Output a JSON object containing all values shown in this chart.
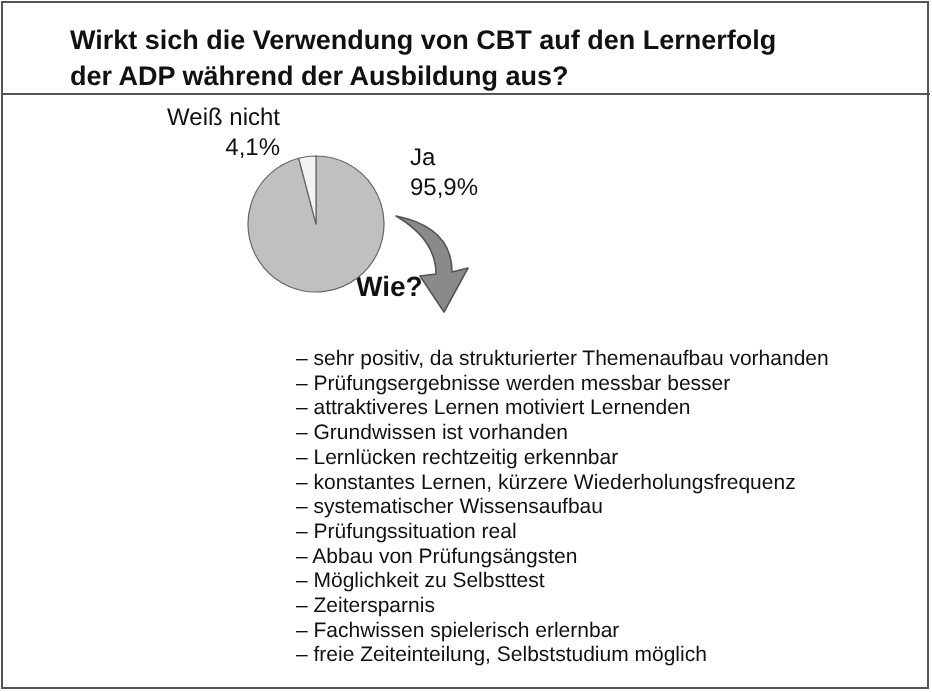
{
  "chart_data": {
    "type": "pie",
    "title": "Wirkt sich die Verwendung von CBT auf den Lernerfolg\nder ADP während der Ausbildung aus?",
    "categories": [
      "Ja",
      "Weiß nicht"
    ],
    "values": [
      95.9,
      4.1
    ],
    "colors": [
      "#c0c0c0",
      "#f2f2f2"
    ],
    "value_labels": [
      "95,9%",
      "4,1%"
    ],
    "legend": false,
    "annotations": [
      "Wie?",
      "– sehr positiv, da strukturierter Themenaufbau vorhanden",
      "– Prüfungsergebnisse werden messbar besser",
      "– attraktiveres Lernen motiviert Lernenden",
      "– Grundwissen ist vorhanden",
      "– Lernlücken rechtzeitig erkennbar",
      "– konstantes Lernen, kürzere Wiederholungsfrequenz",
      "– systematischer Wissensaufbau",
      "– Prüfungssituation real",
      "– Abbau von Prüfungsängsten",
      "– Möglichkeit zu Selbsttest",
      "– Zeitersparnis",
      "– Fachwissen spielerisch erlernbar",
      "– freie Zeiteinteilung, Selbststudium möglich"
    ]
  }
}
